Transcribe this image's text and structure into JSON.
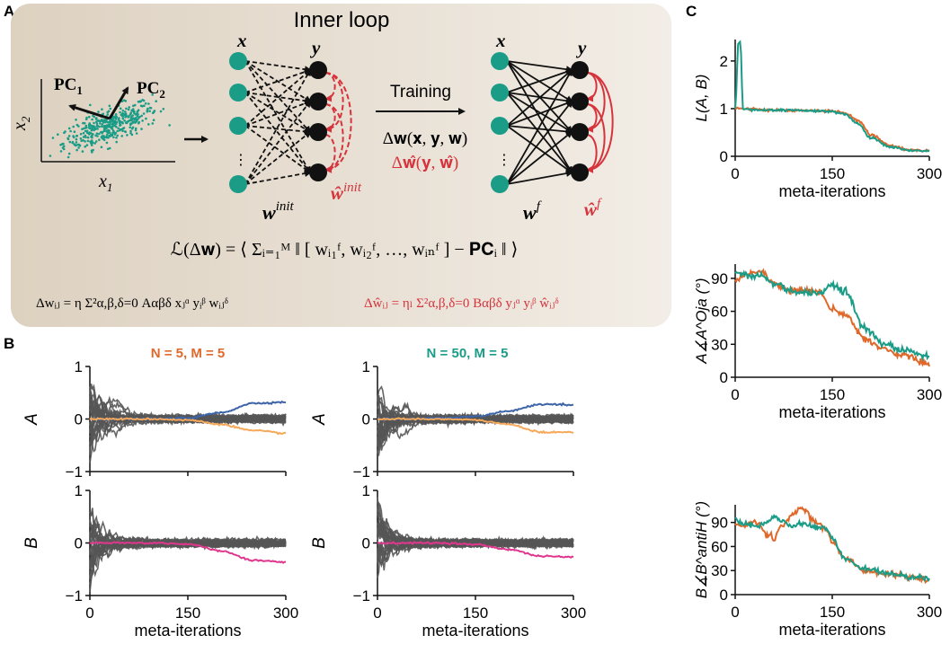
{
  "panel_labels": {
    "a": "A",
    "b": "B",
    "c": "C"
  },
  "inner_loop": {
    "title": "Inner loop",
    "pca": {
      "pc1": "PC",
      "pc1_sub": "1",
      "pc2": "PC",
      "pc2_sub": "2",
      "x1": "x",
      "x1_sub": "1",
      "x2": "x",
      "x2_sub": "2"
    },
    "net_before": {
      "x": "x",
      "y": "y",
      "w": "w",
      "w_sup": "init",
      "what": "ŵ",
      "what_sup": "init",
      "dots": "⋮"
    },
    "net_after": {
      "x": "x",
      "y": "y",
      "w": "w",
      "w_sup": "f",
      "what": "ŵ",
      "what_sup": "f",
      "dots": "⋮"
    },
    "training": {
      "label": "Training",
      "delta_w": "Δ𝐰(𝐱, 𝐲, 𝐰)",
      "delta_what": "Δ𝐰̂(𝐲, 𝐰̂)"
    },
    "loss": "ℒ(Δ𝐰) = ⟨ Σᵢ₌₁ᴹ ‖ [ wᵢ₁ᶠ, wᵢ₂ᶠ, …, wᵢₙᶠ ] − 𝐏𝐂ᵢ ‖ ⟩",
    "rule_w": "Δwᵢⱼ = η Σ²α,β,δ=0 Aαβδ xⱼᵅ yᵢᵝ wᵢⱼᵟ",
    "rule_what": "Δŵᵢⱼ = ηₗ Σ²α,β,δ=0 Bαβδ yⱼᵅ yᵢᵝ ŵᵢⱼᵟ"
  },
  "colors": {
    "teal": "#1a9c87",
    "orange": "#e0682a",
    "blue": "#3d63a8",
    "light_orange": "#f7a95a",
    "magenta": "#e0378e",
    "gray": "#555555",
    "red": "#d7333c",
    "panel_bg": "#e6ddd0"
  },
  "panel_b": {
    "titles": [
      "N = 5, M = 5",
      "N = 50, M = 5"
    ],
    "ylabels": [
      "A",
      "B"
    ],
    "yticks": [
      "1",
      "0",
      "−1"
    ],
    "xticks": [
      "0",
      "150",
      "300"
    ],
    "xlabel": "meta-iterations"
  },
  "panel_c": {
    "xticks": [
      "0",
      "150",
      "300"
    ],
    "xlabel": "meta-iterations",
    "plots": [
      {
        "ylabel": "L(A, B)",
        "yticks": [
          "2",
          "1",
          "0"
        ]
      },
      {
        "ylabel": "A∡A^Oja (°)",
        "yticks": [
          "90",
          "60",
          "30",
          "0"
        ]
      },
      {
        "ylabel": "B∡B^antiH (°)",
        "yticks": [
          "90",
          "60",
          "30",
          "0"
        ]
      }
    ]
  },
  "chart_data": [
    {
      "type": "line",
      "title": "N = 5, M = 5",
      "ylabel": "A",
      "xlabel": "",
      "xlim": [
        0,
        300
      ],
      "ylim": [
        -1,
        1
      ],
      "series": [
        {
          "values_x": [
            0,
            50,
            100,
            150,
            200,
            250,
            300
          ],
          "values": [
            0.0,
            0.0,
            0.0,
            0.02,
            0.12,
            0.3,
            0.32
          ]
        },
        {
          "values_x": [
            0,
            50,
            100,
            150,
            200,
            250,
            300
          ],
          "values": [
            0.0,
            0.0,
            0.0,
            -0.02,
            -0.1,
            -0.22,
            -0.27
          ]
        }
      ]
    },
    {
      "type": "line",
      "title": "N = 5, M = 5",
      "ylabel": "B",
      "xlabel": "meta-iterations",
      "xlim": [
        0,
        300
      ],
      "ylim": [
        -1,
        1
      ],
      "series": [
        {
          "values_x": [
            0,
            50,
            100,
            150,
            200,
            250,
            300
          ],
          "values": [
            0.0,
            0.0,
            0.0,
            -0.02,
            -0.15,
            -0.33,
            -0.36
          ]
        }
      ]
    },
    {
      "type": "line",
      "title": "N = 50, M = 5",
      "ylabel": "A",
      "xlabel": "",
      "xlim": [
        0,
        300
      ],
      "ylim": [
        -1,
        1
      ],
      "series": [
        {
          "values_x": [
            0,
            50,
            100,
            150,
            200,
            250,
            300
          ],
          "values": [
            0.0,
            0.0,
            0.02,
            0.05,
            0.15,
            0.28,
            0.27
          ]
        },
        {
          "values_x": [
            0,
            50,
            100,
            150,
            200,
            250,
            300
          ],
          "values": [
            0.0,
            0.0,
            0.0,
            -0.02,
            -0.1,
            -0.25,
            -0.25
          ]
        }
      ]
    },
    {
      "type": "line",
      "title": "N = 50, M = 5",
      "ylabel": "B",
      "xlabel": "meta-iterations",
      "xlim": [
        0,
        300
      ],
      "ylim": [
        -1,
        1
      ],
      "series": [
        {
          "values_x": [
            0,
            50,
            100,
            150,
            200,
            250,
            300
          ],
          "values": [
            0.0,
            0.0,
            0.0,
            -0.03,
            -0.12,
            -0.25,
            -0.27
          ]
        }
      ]
    },
    {
      "type": "line",
      "ylabel": "L(A, B)",
      "xlabel": "meta-iterations",
      "xlim": [
        0,
        300
      ],
      "ylim": [
        0,
        2.4
      ],
      "series": [
        {
          "values_x": [
            0,
            5,
            8,
            20,
            50,
            100,
            150,
            170,
            190,
            210,
            240,
            270,
            300
          ],
          "values": [
            1.0,
            1.0,
            1.0,
            1.0,
            0.97,
            0.96,
            0.95,
            0.9,
            0.75,
            0.45,
            0.22,
            0.13,
            0.12
          ]
        },
        {
          "values_x": [
            0,
            5,
            8,
            12,
            20,
            50,
            100,
            150,
            170,
            190,
            210,
            240,
            270,
            300
          ],
          "values": [
            1.0,
            2.4,
            2.4,
            1.0,
            0.98,
            0.97,
            0.96,
            0.94,
            0.88,
            0.68,
            0.38,
            0.2,
            0.12,
            0.11
          ]
        }
      ]
    },
    {
      "type": "line",
      "ylabel": "A∡A^Oja (°)",
      "xlabel": "meta-iterations",
      "xlim": [
        0,
        300
      ],
      "ylim": [
        0,
        100
      ],
      "series": [
        {
          "values_x": [
            0,
            20,
            40,
            60,
            80,
            100,
            130,
            150,
            170,
            200,
            230,
            260,
            300
          ],
          "values": [
            88,
            95,
            97,
            85,
            80,
            78,
            78,
            62,
            57,
            35,
            26,
            20,
            12
          ]
        },
        {
          "values_x": [
            0,
            20,
            40,
            60,
            80,
            100,
            130,
            150,
            170,
            200,
            230,
            260,
            300
          ],
          "values": [
            95,
            93,
            92,
            85,
            80,
            77,
            76,
            84,
            78,
            45,
            30,
            25,
            19
          ]
        }
      ]
    },
    {
      "type": "line",
      "ylabel": "B∡B^antiH (°)",
      "xlabel": "meta-iterations",
      "xlim": [
        0,
        300
      ],
      "ylim": [
        0,
        110
      ],
      "series": [
        {
          "values_x": [
            0,
            15,
            30,
            50,
            60,
            70,
            90,
            100,
            110,
            120,
            140,
            150,
            170,
            200,
            240,
            270,
            300
          ],
          "values": [
            88,
            85,
            92,
            75,
            70,
            85,
            100,
            108,
            105,
            92,
            82,
            65,
            45,
            30,
            25,
            22,
            19
          ]
        },
        {
          "values_x": [
            0,
            15,
            30,
            50,
            60,
            70,
            90,
            100,
            110,
            120,
            140,
            150,
            170,
            200,
            240,
            270,
            300
          ],
          "values": [
            95,
            88,
            85,
            90,
            98,
            92,
            85,
            88,
            87,
            85,
            82,
            70,
            45,
            32,
            26,
            22,
            20
          ]
        }
      ]
    }
  ]
}
